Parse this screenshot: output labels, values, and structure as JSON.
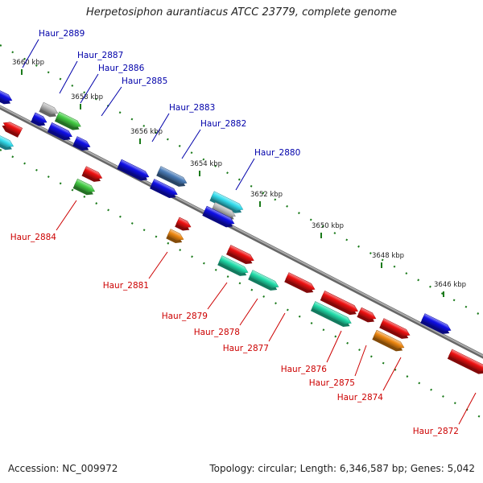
{
  "title": "Herpetosiphon aurantiacus ATCC 23779, complete genome",
  "footer": {
    "accession": "Accession: NC_009972",
    "summary": "Topology: circular; Length: 6,346,587 bp; Genes: 5,042"
  },
  "colors": {
    "blue": "#1010e8",
    "green": "#44cc44",
    "red": "#ee1111",
    "teal": "#22ddaa",
    "orange": "#ee8811",
    "grey": "#b8b8b8",
    "cyan": "#33ddee",
    "steel": "#4a7cb8",
    "label_top": "#0000aa",
    "label_bottom": "#cc0000",
    "backbone": "#888888",
    "ticks": "#1a7a1a"
  },
  "scale_labels": [
    "3660 kbp",
    "3658 kbp",
    "3656 kbp",
    "3654 kbp",
    "3652 kbp",
    "3650 kbp",
    "3648 kbp",
    "3646 kbp"
  ],
  "top_labels": [
    "Haur_2889",
    "Haur_2887",
    "Haur_2886",
    "Haur_2885",
    "Haur_2883",
    "Haur_2882",
    "Haur_2880"
  ],
  "bottom_labels": [
    "Haur_2884",
    "Haur_2881",
    "Haur_2879",
    "Haur_2878",
    "Haur_2877",
    "Haur_2876",
    "Haur_2875",
    "Haur_2874",
    "Haur_2872"
  ]
}
